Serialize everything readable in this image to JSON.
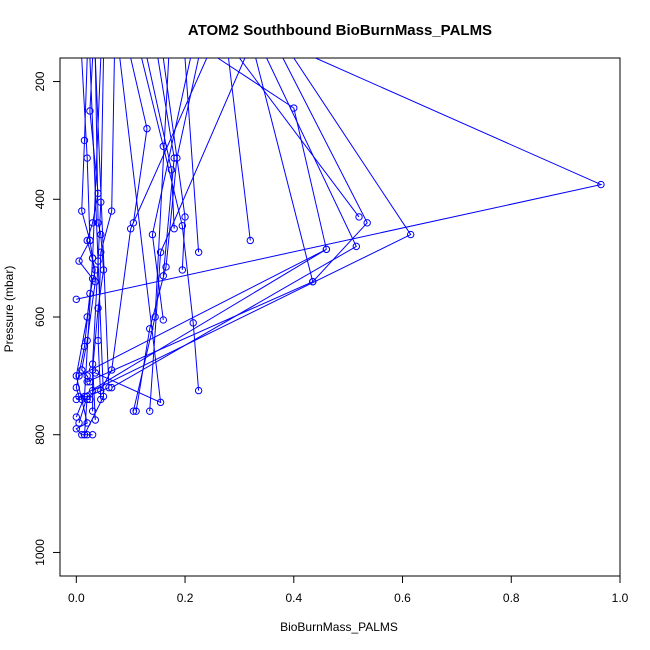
{
  "chart_data": {
    "type": "line",
    "title": "ATOM2 Southbound BioBurnMass_PALMS",
    "xlabel": "BioBurnMass_PALMS",
    "ylabel": "Pressure (mbar)",
    "xlim": [
      -0.03,
      1.0
    ],
    "ylim": [
      1040,
      160
    ],
    "y_reversed": true,
    "x_ticks": [
      "0.0",
      "0.2",
      "0.4",
      "0.6",
      "0.8",
      "1.0"
    ],
    "y_ticks": [
      "200",
      "400",
      "600",
      "800",
      "1000"
    ],
    "grid": false,
    "legend": "none",
    "color": "#0000ff",
    "markers": "open-circle",
    "series": [
      {
        "x": [
          0.02,
          0.015,
          0.01,
          0.025,
          0.005,
          0.03,
          0.02,
          0.0,
          0.01,
          0.02,
          0.0,
          0.01,
          0.02,
          0.03
        ],
        "y": [
          160,
          300,
          420,
          470,
          505,
          535,
          600,
          700,
          740,
          780,
          790,
          800,
          800,
          800
        ]
      },
      {
        "x": [
          0.03,
          0.025,
          0.04,
          0.03,
          0.02,
          0.035,
          0.025,
          0.015,
          0.0,
          0.005,
          0.02,
          0.025
        ],
        "y": [
          160,
          250,
          390,
          440,
          470,
          520,
          560,
          650,
          720,
          735,
          740,
          740
        ]
      },
      {
        "x": [
          0.01,
          0.02,
          0.025,
          0.03,
          0.035,
          0.02,
          0.01,
          0.02,
          0.025
        ],
        "y": [
          160,
          330,
          470,
          500,
          540,
          640,
          690,
          700,
          710
        ]
      },
      {
        "x": [
          0.035,
          0.04,
          0.045,
          0.05,
          0.04,
          0.03,
          0.03
        ],
        "y": [
          160,
          440,
          460,
          520,
          585,
          690,
          760
        ]
      },
      {
        "x": [
          0.05,
          0.045,
          0.04,
          0.03,
          0.035
        ],
        "y": [
          160,
          405,
          505,
          680,
          775
        ]
      },
      {
        "x": [
          0.07,
          0.065,
          0.045,
          0.04,
          0.045
        ],
        "y": [
          160,
          420,
          490,
          640,
          740
        ]
      },
      {
        "x": [
          0.1,
          0.13,
          0.105
        ],
        "y": [
          160,
          280,
          440
        ]
      },
      {
        "x": [
          0.12,
          0.16,
          0.195,
          0.215,
          0.225
        ],
        "y": [
          160,
          310,
          445,
          610,
          725
        ]
      },
      {
        "x": [
          0.13,
          0.175,
          0.18
        ],
        "y": [
          160,
          350,
          450
        ]
      },
      {
        "x": [
          0.16,
          0.2,
          0.195
        ],
        "y": [
          160,
          430,
          520
        ]
      },
      {
        "x": [
          0.15,
          0.18,
          0.16
        ],
        "y": [
          160,
          330,
          530
        ]
      },
      {
        "x": [
          0.2,
          0.225
        ],
        "y": [
          160,
          490
        ]
      },
      {
        "x": [
          0.225,
          0.185,
          0.165,
          0.135,
          0.11
        ],
        "y": [
          160,
          330,
          515,
          620,
          760
        ]
      },
      {
        "x": [
          0.21,
          0.14,
          0.16
        ],
        "y": [
          160,
          460,
          605
        ]
      },
      {
        "x": [
          0.28,
          0.32
        ],
        "y": [
          160,
          470
        ]
      },
      {
        "x": [
          0.17,
          0.145,
          0.105
        ],
        "y": [
          160,
          600,
          760
        ]
      },
      {
        "x": [
          0.26,
          0.4,
          0.46
        ],
        "y": [
          160,
          245,
          485
        ]
      },
      {
        "x": [
          0.24,
          0.1,
          0.065,
          0.045
        ],
        "y": [
          160,
          450,
          690,
          725
        ]
      },
      {
        "x": [
          0.3,
          0.52
        ],
        "y": [
          160,
          430
        ]
      },
      {
        "x": [
          0.38,
          0.535,
          0.435,
          0.02
        ],
        "y": [
          160,
          440,
          540,
          710
        ]
      },
      {
        "x": [
          0.35,
          0.515,
          0.065
        ],
        "y": [
          160,
          480,
          720
        ]
      },
      {
        "x": [
          0.4,
          0.615,
          0.03
        ],
        "y": [
          160,
          460,
          725
        ]
      },
      {
        "x": [
          0.44,
          0.965,
          0.0
        ],
        "y": [
          160,
          375,
          570
        ]
      },
      {
        "x": [
          0.31,
          0.155,
          0.135
        ],
        "y": [
          160,
          490,
          760
        ]
      },
      {
        "x": [
          0.33,
          0.435
        ],
        "y": [
          160,
          540
        ]
      },
      {
        "x": [
          0.0,
          0.46,
          0.005
        ],
        "y": [
          740,
          485,
          700
        ]
      },
      {
        "x": [
          0.08,
          0.155,
          0.035
        ],
        "y": [
          160,
          745,
          695
        ]
      },
      {
        "x": [
          0.025,
          0.05,
          0.015,
          0.02
        ],
        "y": [
          160,
          735,
          800,
          735
        ]
      },
      {
        "x": [
          0.035,
          0.06,
          0.02,
          0.005
        ],
        "y": [
          160,
          720,
          735,
          780
        ]
      },
      {
        "x": [
          0.045,
          0.03,
          0.015,
          0.0
        ],
        "y": [
          160,
          500,
          735,
          770
        ]
      }
    ]
  }
}
